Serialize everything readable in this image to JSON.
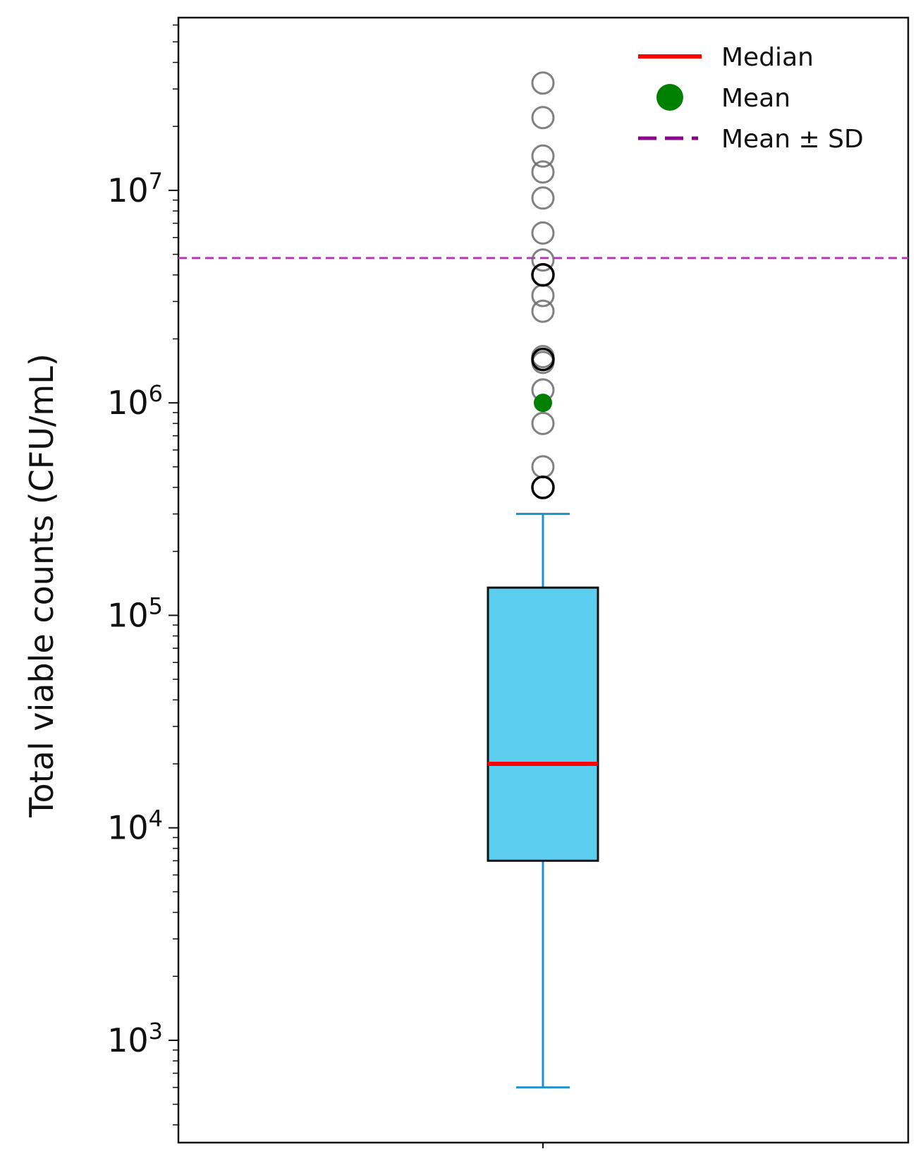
{
  "chart_data": {
    "type": "box",
    "yscale": "log",
    "ylabel": "Total viable counts (CFU/mL)",
    "xlabel": "",
    "ylim": [
      330,
      65000000
    ],
    "grid": false,
    "legend_position": "top-right",
    "legend": [
      {
        "label": "Median",
        "marker": "line",
        "color": "#ff0000"
      },
      {
        "label": "Mean",
        "marker": "dot",
        "color": "#008000"
      },
      {
        "label": "Mean ± SD",
        "marker": "dashed-line",
        "color": "#8b008b"
      }
    ],
    "y_ticks": [
      {
        "value": 1000,
        "base": "10",
        "exp": "3"
      },
      {
        "value": 10000,
        "base": "10",
        "exp": "4"
      },
      {
        "value": 100000,
        "base": "10",
        "exp": "5"
      },
      {
        "value": 1000000,
        "base": "10",
        "exp": "6"
      },
      {
        "value": 10000000,
        "base": "10",
        "exp": "7"
      }
    ],
    "box": {
      "whisker_low": 600,
      "q1": 7000,
      "median": 20000,
      "q3": 135000,
      "whisker_high": 300000,
      "fill_color": "#5ccff0",
      "whisker_color": "#1f8fd0",
      "median_color": "#ff0000"
    },
    "outliers": [
      32000000,
      22000000,
      14500000,
      12200000,
      9200000,
      6300000,
      4700000,
      4000000,
      3200000,
      2700000,
      1650000,
      1550000,
      1150000,
      800000,
      500000,
      400000
    ],
    "outliers_dark": [
      4000000,
      1600000,
      400000
    ],
    "mean": 1000000,
    "mean_plus_sd": 4800000,
    "mean_color": "#008000",
    "sd_color": "#b03cb0"
  }
}
